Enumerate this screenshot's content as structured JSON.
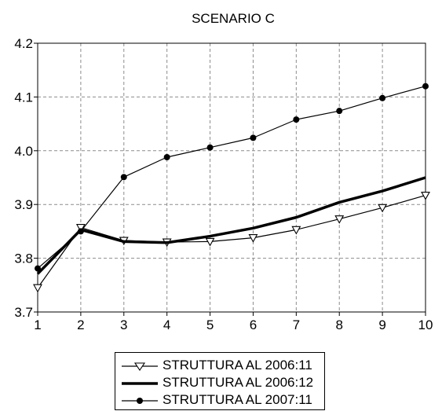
{
  "chart_data": {
    "type": "line",
    "title": "SCENARIO C",
    "xlabel": "",
    "ylabel": "",
    "x": [
      1,
      2,
      3,
      4,
      5,
      6,
      7,
      8,
      9,
      10
    ],
    "xticks": [
      "1",
      "2",
      "3",
      "4",
      "5",
      "6",
      "7",
      "8",
      "9",
      "10"
    ],
    "ylim": [
      3.7,
      4.2
    ],
    "yticks": [
      "3.7",
      "3.8",
      "3.9",
      "4.0",
      "4.1",
      "4.2"
    ],
    "grid": true,
    "legend_position": "bottom",
    "series": [
      {
        "name": "STRUTTURA AL 2006:11",
        "marker": "triangle-down-open",
        "line_weight": "thin",
        "color": "#000000",
        "values": [
          3.745,
          3.857,
          3.833,
          3.83,
          3.831,
          3.838,
          3.853,
          3.873,
          3.894,
          3.917
        ]
      },
      {
        "name": "STRUTTURA AL 2006:12",
        "marker": "none",
        "line_weight": "thick",
        "color": "#000000",
        "values": [
          3.771,
          3.853,
          3.831,
          3.829,
          3.841,
          3.856,
          3.876,
          3.904,
          3.925,
          3.95
        ]
      },
      {
        "name": "STRUTTURA AL 2007:11",
        "marker": "circle-filled",
        "line_weight": "thin",
        "color": "#000000",
        "values": [
          3.781,
          3.85,
          3.951,
          3.988,
          4.006,
          4.024,
          4.058,
          4.074,
          4.098,
          4.12
        ]
      }
    ]
  }
}
